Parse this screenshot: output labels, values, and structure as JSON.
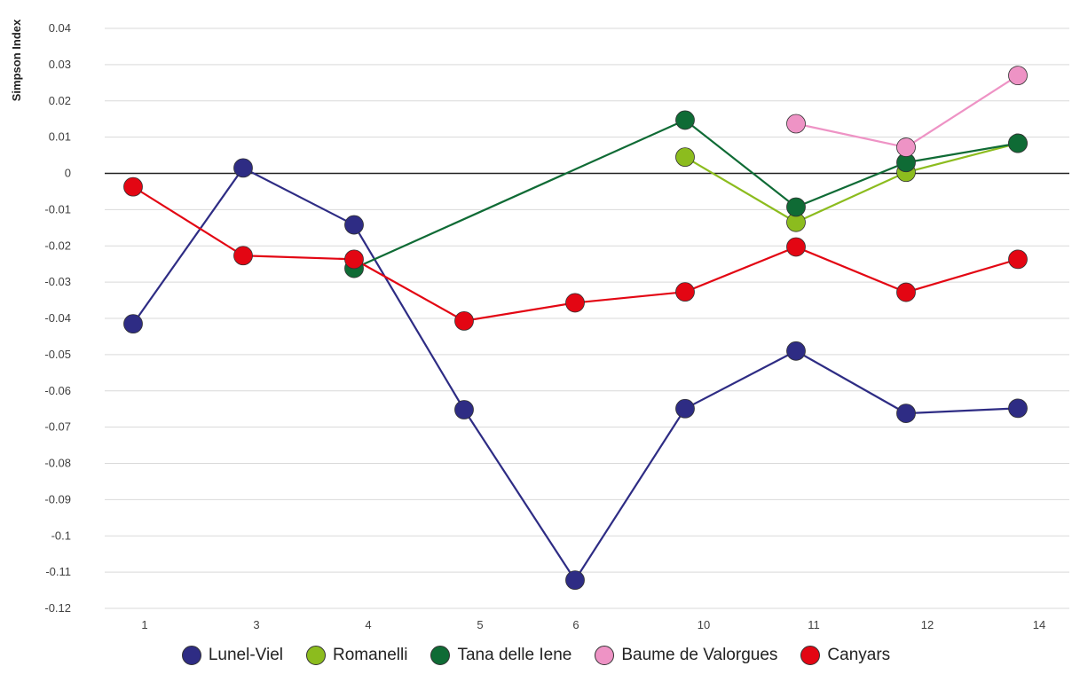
{
  "chart_data": {
    "type": "line",
    "ylabel": "Simpson Index",
    "xlabel": "",
    "categories": [
      "1",
      "3",
      "4",
      "5",
      "6",
      "10",
      "11",
      "12",
      "14"
    ],
    "ylim": [
      -0.12,
      0.04
    ],
    "yticks": [
      "0.04",
      "0.03",
      "0.02",
      "0.01",
      "0",
      "-0.01",
      "-0.02",
      "-0.03",
      "-0.04",
      "-0.05",
      "-0.06",
      "-0.07",
      "-0.08",
      "-0.09",
      "-0.1",
      "-0.11",
      "-0.12"
    ],
    "grid": true,
    "legend_position": "bottom",
    "series": [
      {
        "name": "Lunel-Viel",
        "color": "#2e2c84",
        "values": [
          -0.0415,
          0.0015,
          -0.0142,
          -0.0652,
          -0.1122,
          -0.0649,
          -0.049,
          -0.0662,
          -0.0648
        ]
      },
      {
        "name": "Romanelli",
        "color": "#8cbc1e",
        "values": [
          null,
          null,
          null,
          null,
          null,
          0.0045,
          -0.0135,
          0.0003,
          0.0083
        ]
      },
      {
        "name": "Tana delle Iene",
        "color": "#0f6b35",
        "values": [
          null,
          null,
          -0.0262,
          null,
          null,
          0.0147,
          -0.0093,
          0.003,
          0.0083
        ]
      },
      {
        "name": "Baume de Valorgues",
        "color": "#ee93c5",
        "values": [
          null,
          null,
          null,
          null,
          null,
          null,
          0.0137,
          0.0072,
          0.027
        ]
      },
      {
        "name": "Canyars",
        "color": "#e30613",
        "values": [
          -0.0037,
          -0.0227,
          -0.0237,
          -0.0407,
          -0.0357,
          -0.0327,
          -0.0203,
          -0.0328,
          -0.0237
        ]
      }
    ]
  }
}
